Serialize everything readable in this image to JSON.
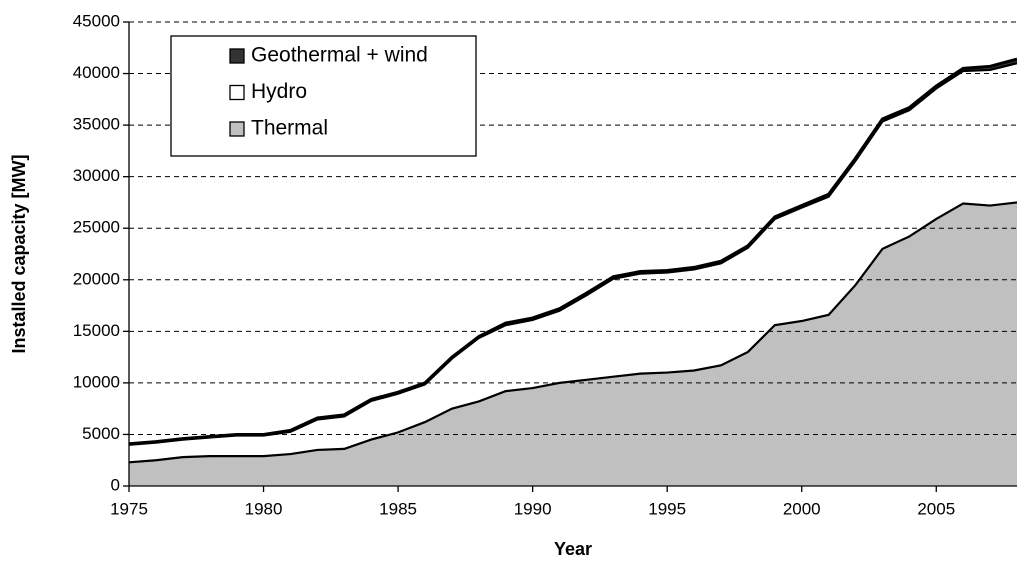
{
  "chart_data": {
    "type": "stacked_area",
    "x_label": "Year",
    "y_label": "Installed capacity [MW]",
    "x": [
      1975,
      1976,
      1977,
      1978,
      1979,
      1980,
      1981,
      1982,
      1983,
      1984,
      1985,
      1986,
      1987,
      1988,
      1989,
      1990,
      1991,
      1992,
      1993,
      1994,
      1995,
      1996,
      1997,
      1998,
      1999,
      2000,
      2001,
      2002,
      2003,
      2004,
      2005,
      2006,
      2007,
      2008
    ],
    "series": [
      {
        "name": "Thermal",
        "color": "#c0c0c0",
        "values": [
          2300,
          2500,
          2800,
          2900,
          2900,
          2900,
          3100,
          3500,
          3600,
          4500,
          5200,
          6200,
          7500,
          8200,
          9200,
          9500,
          10000,
          10300,
          10600,
          10900,
          11000,
          11200,
          11700,
          13000,
          15600,
          16000,
          16600,
          19500,
          23000,
          24200,
          25900,
          27400,
          27200,
          27500
        ]
      },
      {
        "name": "Hydro",
        "color": "#ffffff",
        "values": [
          1700,
          1700,
          1700,
          1800,
          2000,
          2000,
          2150,
          2950,
          3150,
          3750,
          3750,
          3650,
          4850,
          6150,
          6400,
          6600,
          7000,
          8200,
          9500,
          9700,
          9700,
          9800,
          9900,
          10100,
          10300,
          11000,
          11450,
          12050,
          12350,
          12250,
          12650,
          12850,
          13150,
          13500
        ]
      },
      {
        "name": "Geothermal + wind",
        "color": "#333333",
        "values": [
          100,
          100,
          100,
          100,
          100,
          100,
          150,
          150,
          150,
          150,
          150,
          150,
          150,
          150,
          200,
          200,
          200,
          200,
          200,
          200,
          200,
          200,
          200,
          200,
          200,
          200,
          250,
          250,
          250,
          250,
          250,
          250,
          350,
          400
        ]
      }
    ],
    "xlim": [
      1975,
      2008
    ],
    "xticks": [
      1975,
      1980,
      1985,
      1990,
      1995,
      2000,
      2005
    ],
    "ylim": [
      0,
      45000
    ],
    "yticks": [
      0,
      5000,
      10000,
      15000,
      20000,
      25000,
      30000,
      35000,
      40000,
      45000
    ],
    "grid": true,
    "legend": "upper left"
  }
}
